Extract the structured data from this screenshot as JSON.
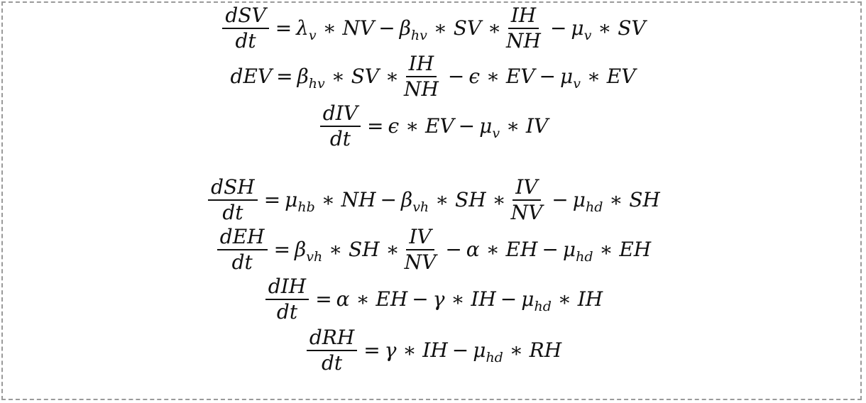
{
  "equations": {
    "e1": {
      "lhs_num": "dSV",
      "lhs_den": "dt",
      "t1_var": "λ",
      "t1_sub": "v",
      "t1_rest": "∗ NV",
      "t2_var": "β",
      "t2_sub": "hv",
      "t2_rest": "∗ SV ∗",
      "t2_frac_num": "IH",
      "t2_frac_den": "NH",
      "t3_var": "μ",
      "t3_sub": "v",
      "t3_rest": "∗ SV"
    },
    "e2": {
      "lhs": "dEV",
      "t1_var": "β",
      "t1_sub": "hv",
      "t1_rest": "∗ SV ∗",
      "t1_frac_num": "IH",
      "t1_frac_den": "NH",
      "t2": "ϵ ∗ EV",
      "t3_var": "μ",
      "t3_sub": "v",
      "t3_rest": "∗ EV"
    },
    "e3": {
      "lhs_num": "dIV",
      "lhs_den": "dt",
      "t1": "ϵ ∗ EV",
      "t2_var": "μ",
      "t2_sub": "v",
      "t2_rest": "∗ IV"
    },
    "e4": {
      "lhs_num": "dSH",
      "lhs_den": "dt",
      "t1_var": "μ",
      "t1_sub": "hb",
      "t1_rest": "∗ NH",
      "t2_var": "β",
      "t2_sub": "vh",
      "t2_rest": "∗ SH ∗",
      "t2_frac_num": "IV",
      "t2_frac_den": "NV",
      "t3_var": "μ",
      "t3_sub": "hd",
      "t3_rest": "∗ SH"
    },
    "e5": {
      "lhs_num": "dEH",
      "lhs_den": "dt",
      "t1_var": "β",
      "t1_sub": "vh",
      "t1_rest": "∗ SH ∗",
      "t1_frac_num": "IV",
      "t1_frac_den": "NV",
      "t2": "α ∗ EH",
      "t3_var": "μ",
      "t3_sub": "hd",
      "t3_rest": "∗ EH"
    },
    "e6": {
      "lhs_num": "dIH",
      "lhs_den": "dt",
      "t1": "α ∗ EH",
      "t2": "γ ∗ IH",
      "t3_var": "μ",
      "t3_sub": "hd",
      "t3_rest": "∗ IH"
    },
    "e7": {
      "lhs_num": "dRH",
      "lhs_den": "dt",
      "t1": "γ ∗ IH",
      "t2_var": "μ",
      "t2_sub": "hd",
      "t2_rest": "∗ RH"
    }
  },
  "operators": {
    "equals": "=",
    "minus": "−"
  }
}
